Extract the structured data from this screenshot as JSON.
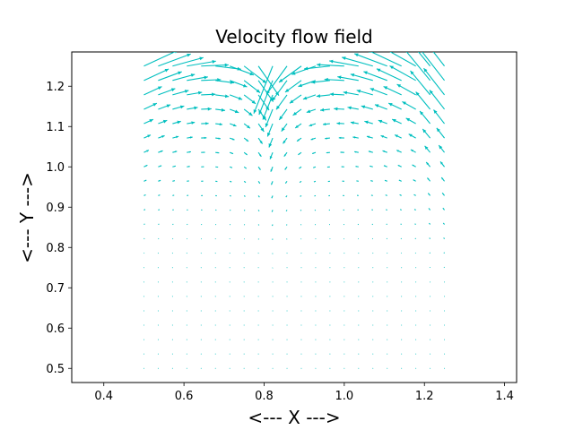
{
  "chart_data": {
    "type": "quiver",
    "title": "Velocity flow field",
    "xlabel": "<--- X --->",
    "ylabel": "<--- Y --->",
    "xlim": [
      0.32,
      1.43
    ],
    "ylim": [
      0.465,
      1.285
    ],
    "xticks": [
      "0.4",
      "0.6",
      "0.8",
      "1.0",
      "1.2",
      "1.4"
    ],
    "xtick_values": [
      0.4,
      0.6,
      0.8,
      1.0,
      1.2,
      1.4
    ],
    "yticks": [
      "0.5",
      "0.6",
      "0.7",
      "0.8",
      "0.9",
      "1.0",
      "1.1",
      "1.2"
    ],
    "ytick_values": [
      0.5,
      0.6,
      0.7,
      0.8,
      0.9,
      1.0,
      1.1,
      1.2
    ],
    "grid": false,
    "arrow_color": "#00bfbf",
    "field": {
      "x_start": 0.5,
      "x_end": 1.25,
      "nx": 22,
      "y_start": 0.5,
      "y_end": 1.25,
      "ny": 22,
      "description": "lid-driven cavity style flow; arrows strongest near top edge, converging toward x≈0.8–0.85 and diverging near the corners"
    }
  }
}
